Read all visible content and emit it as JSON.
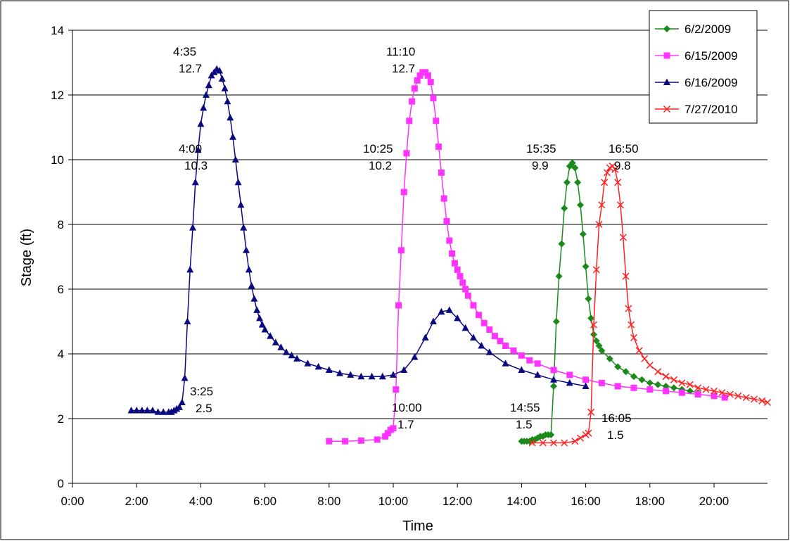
{
  "chart_data": {
    "type": "line",
    "title": "",
    "xlabel": "Time",
    "ylabel": "Stage (ft)",
    "xlim": [
      "0:00",
      "21:40"
    ],
    "ylim": [
      0,
      14
    ],
    "x_ticks": [
      "0:00",
      "2:00",
      "4:00",
      "6:00",
      "8:00",
      "10:00",
      "12:00",
      "14:00",
      "16:00",
      "18:00",
      "20:00"
    ],
    "y_ticks": [
      "0",
      "2",
      "4",
      "6",
      "8",
      "10",
      "12",
      "14"
    ],
    "grid": "horizontal",
    "legend_position": "top-right",
    "colors": {
      "6/2/2009": "#1a8a1a",
      "6/15/2009": "#ff33ff",
      "6/16/2009": "#0a0a80",
      "7/27/2010": "#ff2020"
    },
    "series": [
      {
        "name": "6/2/2009",
        "marker": "diamond",
        "x": [
          "14:00",
          "14:05",
          "14:10",
          "14:15",
          "14:20",
          "14:25",
          "14:30",
          "14:35",
          "14:40",
          "14:45",
          "14:50",
          "14:55",
          "15:00",
          "15:05",
          "15:10",
          "15:15",
          "15:20",
          "15:25",
          "15:30",
          "15:35",
          "15:40",
          "15:45",
          "15:50",
          "15:55",
          "16:00",
          "16:05",
          "16:10",
          "16:15",
          "16:20",
          "16:25",
          "16:30",
          "16:45",
          "17:00",
          "17:15",
          "17:30",
          "17:45",
          "18:00",
          "18:15",
          "18:30",
          "18:45",
          "19:00",
          "19:15",
          "19:30"
        ],
        "y": [
          1.3,
          1.3,
          1.3,
          1.3,
          1.35,
          1.35,
          1.4,
          1.45,
          1.45,
          1.5,
          1.5,
          1.5,
          3.0,
          5.0,
          6.4,
          7.4,
          8.5,
          9.3,
          9.8,
          9.9,
          9.75,
          9.3,
          8.6,
          7.7,
          6.7,
          5.7,
          5.1,
          4.6,
          4.4,
          4.25,
          4.1,
          3.85,
          3.6,
          3.45,
          3.3,
          3.2,
          3.1,
          3.05,
          3.0,
          2.95,
          2.9,
          2.85,
          2.8
        ]
      },
      {
        "name": "6/15/2009",
        "marker": "square",
        "x": [
          "8:00",
          "8:30",
          "9:00",
          "9:30",
          "9:45",
          "9:50",
          "9:55",
          "10:00",
          "10:05",
          "10:10",
          "10:15",
          "10:20",
          "10:25",
          "10:30",
          "10:35",
          "10:40",
          "10:45",
          "10:50",
          "10:55",
          "11:00",
          "11:05",
          "11:10",
          "11:15",
          "11:20",
          "11:25",
          "11:30",
          "11:35",
          "11:40",
          "11:45",
          "11:50",
          "11:55",
          "12:00",
          "12:05",
          "12:10",
          "12:15",
          "12:20",
          "12:30",
          "12:40",
          "12:50",
          "13:00",
          "13:10",
          "13:20",
          "13:30",
          "13:45",
          "14:00",
          "14:15",
          "14:30",
          "15:00",
          "15:30",
          "16:00",
          "16:30",
          "17:00",
          "17:30",
          "18:00",
          "18:30",
          "19:00",
          "19:30",
          "20:00",
          "20:20"
        ],
        "y": [
          1.3,
          1.3,
          1.32,
          1.35,
          1.45,
          1.55,
          1.65,
          1.7,
          2.9,
          5.5,
          7.2,
          9.0,
          10.2,
          11.2,
          11.8,
          12.2,
          12.45,
          12.6,
          12.7,
          12.7,
          12.6,
          12.4,
          11.9,
          11.2,
          10.4,
          9.6,
          8.8,
          8.1,
          7.5,
          7.1,
          6.8,
          6.6,
          6.4,
          6.2,
          6.0,
          5.8,
          5.5,
          5.2,
          4.95,
          4.75,
          4.55,
          4.4,
          4.25,
          4.1,
          3.95,
          3.8,
          3.7,
          3.5,
          3.35,
          3.2,
          3.1,
          3.0,
          2.95,
          2.9,
          2.85,
          2.8,
          2.75,
          2.7,
          2.65
        ]
      },
      {
        "name": "6/16/2009",
        "marker": "triangle",
        "x": [
          "1:50",
          "2:00",
          "2:10",
          "2:20",
          "2:30",
          "2:40",
          "2:50",
          "3:00",
          "3:05",
          "3:10",
          "3:15",
          "3:20",
          "3:25",
          "3:30",
          "3:35",
          "3:40",
          "3:45",
          "3:50",
          "3:55",
          "4:00",
          "4:05",
          "4:10",
          "4:15",
          "4:20",
          "4:25",
          "4:30",
          "4:35",
          "4:40",
          "4:45",
          "4:50",
          "4:55",
          "5:00",
          "5:05",
          "5:10",
          "5:15",
          "5:20",
          "5:25",
          "5:30",
          "5:35",
          "5:40",
          "5:45",
          "5:50",
          "5:55",
          "6:00",
          "6:10",
          "6:20",
          "6:30",
          "6:40",
          "6:50",
          "7:00",
          "7:20",
          "7:40",
          "8:00",
          "8:20",
          "8:40",
          "9:00",
          "9:20",
          "9:40",
          "10:00",
          "10:20",
          "10:40",
          "11:00",
          "11:15",
          "11:30",
          "11:45",
          "12:00",
          "12:15",
          "12:30",
          "12:45",
          "13:00",
          "13:30",
          "14:00",
          "14:30",
          "15:00",
          "15:30",
          "16:00"
        ],
        "y": [
          2.25,
          2.25,
          2.25,
          2.25,
          2.25,
          2.2,
          2.2,
          2.2,
          2.2,
          2.25,
          2.3,
          2.35,
          2.5,
          3.25,
          5.0,
          6.6,
          7.9,
          9.3,
          10.3,
          11.1,
          11.6,
          12.0,
          12.3,
          12.6,
          12.7,
          12.8,
          12.75,
          12.5,
          12.2,
          11.8,
          11.3,
          10.7,
          10.0,
          9.3,
          8.6,
          7.9,
          7.2,
          6.6,
          6.1,
          5.7,
          5.35,
          5.1,
          4.9,
          4.75,
          4.55,
          4.35,
          4.2,
          4.05,
          3.95,
          3.85,
          3.7,
          3.6,
          3.5,
          3.4,
          3.35,
          3.3,
          3.3,
          3.3,
          3.35,
          3.5,
          3.9,
          4.5,
          5.0,
          5.3,
          5.35,
          5.1,
          4.8,
          4.5,
          4.25,
          4.05,
          3.7,
          3.5,
          3.35,
          3.2,
          3.1,
          3.0
        ]
      },
      {
        "name": "7/27/2010",
        "marker": "x",
        "x": [
          "14:20",
          "14:40",
          "15:00",
          "15:20",
          "15:40",
          "15:50",
          "16:00",
          "16:05",
          "16:10",
          "16:15",
          "16:20",
          "16:25",
          "16:30",
          "16:35",
          "16:40",
          "16:45",
          "16:50",
          "16:55",
          "17:00",
          "17:05",
          "17:10",
          "17:15",
          "17:20",
          "17:25",
          "17:30",
          "17:40",
          "17:50",
          "18:00",
          "18:15",
          "18:30",
          "18:45",
          "19:00",
          "19:15",
          "19:30",
          "19:45",
          "20:00",
          "20:15",
          "20:30",
          "20:45",
          "21:00",
          "21:15",
          "21:30",
          "21:40"
        ],
        "y": [
          1.25,
          1.25,
          1.25,
          1.25,
          1.3,
          1.4,
          1.5,
          1.55,
          2.2,
          4.9,
          6.6,
          8.0,
          8.6,
          9.3,
          9.6,
          9.75,
          9.8,
          9.7,
          9.3,
          8.6,
          7.6,
          6.4,
          5.4,
          4.9,
          4.5,
          4.1,
          3.85,
          3.65,
          3.45,
          3.3,
          3.2,
          3.1,
          3.05,
          2.95,
          2.9,
          2.85,
          2.8,
          2.75,
          2.7,
          2.65,
          2.6,
          2.55,
          2.5
        ]
      }
    ],
    "annotations": [
      {
        "time": "4:35",
        "value": "12.7"
      },
      {
        "time": "4:00",
        "value": "10.3"
      },
      {
        "time": "3:25",
        "value": "2.5"
      },
      {
        "time": "11:10",
        "value": "12.7"
      },
      {
        "time": "10:25",
        "value": "10.2"
      },
      {
        "time": "10:00",
        "value": "1.7"
      },
      {
        "time": "15:35",
        "value": "9.9"
      },
      {
        "time": "14:55",
        "value": "1.5"
      },
      {
        "time": "16:50",
        "value": "9.8"
      },
      {
        "time": "16:05",
        "value": "1.5"
      }
    ]
  }
}
